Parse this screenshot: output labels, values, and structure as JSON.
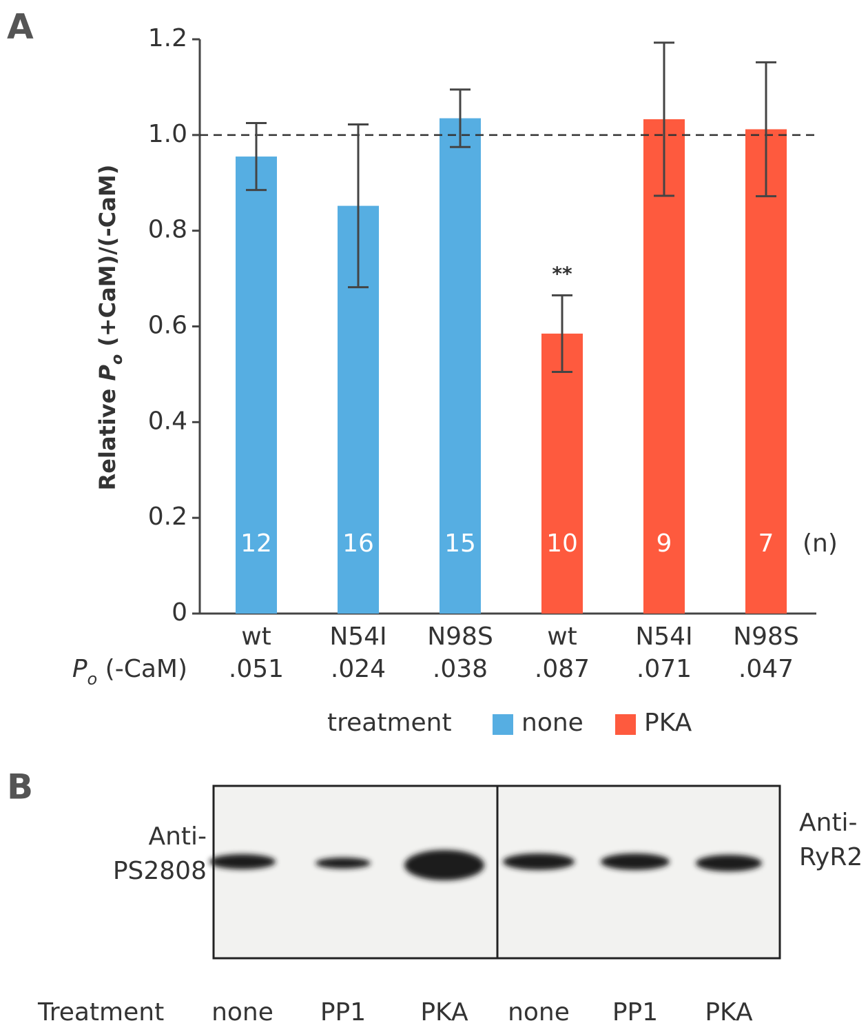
{
  "chart_data": {
    "type": "bar",
    "panel_label": "A",
    "ylabel_parts": [
      "Relative ",
      "P",
      "o",
      " (+CaM)/(-CaM)"
    ],
    "categories": [
      "wt",
      "N54I",
      "N98S",
      "wt",
      "N54I",
      "N98S"
    ],
    "po_label_parts": [
      "P",
      "o",
      " (-CaM)"
    ],
    "po_values": [
      ".051",
      ".024",
      ".038",
      ".087",
      ".071",
      ".047"
    ],
    "n": [
      12,
      16,
      15,
      10,
      9,
      7
    ],
    "n_label": "(n)",
    "series": [
      {
        "name": "none",
        "color": "#56aee2",
        "values": [
          0.955,
          0.852,
          1.035,
          null,
          null,
          null
        ],
        "errors": [
          0.07,
          0.17,
          0.06,
          null,
          null,
          null
        ]
      },
      {
        "name": "PKA",
        "color": "#fe5a3e",
        "values": [
          null,
          null,
          null,
          0.585,
          1.033,
          1.012
        ],
        "errors": [
          null,
          null,
          null,
          0.08,
          0.16,
          0.14
        ]
      }
    ],
    "annotation": "**",
    "reference_line": 1,
    "legend_title": "treatment",
    "ylim": [
      0,
      1.2
    ],
    "yticks": [
      0,
      0.2,
      0.4,
      0.6,
      0.8,
      {
        "value": 1,
        "label": "1.0"
      },
      1.2
    ],
    "grid": false
  },
  "panel_b": {
    "panel_label": "B",
    "left_label": [
      "Anti-",
      "PS2808"
    ],
    "right_label": [
      "Anti-",
      "RyR2"
    ],
    "row_label": "Treatment",
    "lanes": [
      "none",
      "PP1",
      "PKA",
      "none",
      "PP1",
      "PKA"
    ]
  }
}
